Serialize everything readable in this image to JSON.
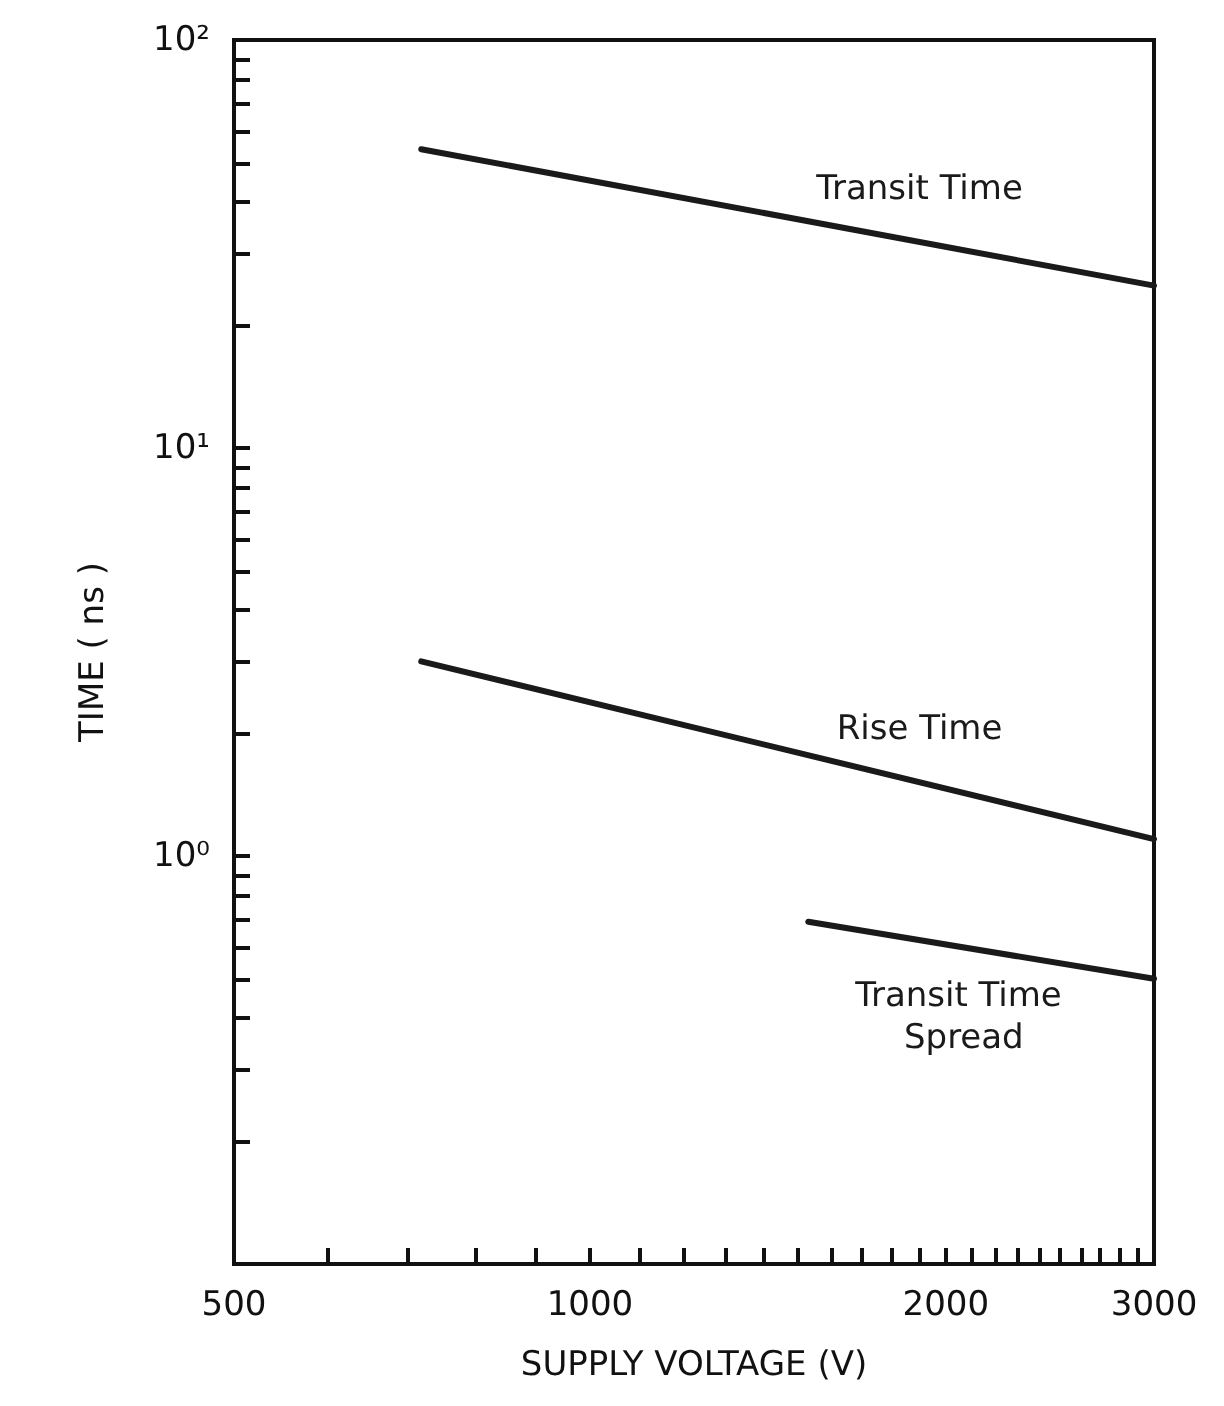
{
  "chart_data": {
    "type": "line",
    "xlabel": "SUPPLY VOLTAGE (V)",
    "ylabel": "TIME ( ns )",
    "log": "xy",
    "grid": false,
    "legend": false,
    "marker": "none",
    "line_style": "solid",
    "xlim": [
      500,
      3000
    ],
    "ylim": [
      0.1,
      100
    ],
    "xticks": [
      500,
      {
        "value": 600,
        "label": null
      },
      {
        "value": 700,
        "label": null
      },
      {
        "value": 800,
        "label": null
      },
      {
        "value": 900,
        "label": null
      },
      1000,
      {
        "value": 1100,
        "label": null
      },
      {
        "value": 1200,
        "label": null
      },
      {
        "value": 1300,
        "label": null
      },
      {
        "value": 1400,
        "label": null
      },
      {
        "value": 1500,
        "label": null
      },
      {
        "value": 1600,
        "label": null
      },
      {
        "value": 1700,
        "label": null
      },
      {
        "value": 1800,
        "label": null
      },
      {
        "value": 1900,
        "label": null
      },
      2000,
      {
        "value": 2100,
        "label": null
      },
      {
        "value": 2200,
        "label": null
      },
      {
        "value": 2300,
        "label": null
      },
      {
        "value": 2400,
        "label": null
      },
      {
        "value": 2500,
        "label": null
      },
      {
        "value": 2600,
        "label": null
      },
      {
        "value": 2700,
        "label": null
      },
      {
        "value": 2800,
        "label": null
      },
      {
        "value": 2900,
        "label": null
      },
      3000
    ],
    "yticks": [
      {
        "value": 0.2,
        "label": null
      },
      {
        "value": 0.3,
        "label": null
      },
      {
        "value": 0.4,
        "label": null
      },
      {
        "value": 0.5,
        "label": null
      },
      {
        "value": 0.6,
        "label": null
      },
      {
        "value": 0.7,
        "label": null
      },
      {
        "value": 0.8,
        "label": null
      },
      {
        "value": 0.9,
        "label": null
      },
      {
        "value": 1,
        "label": "10⁰"
      },
      {
        "value": 2,
        "label": null
      },
      {
        "value": 3,
        "label": null
      },
      {
        "value": 4,
        "label": null
      },
      {
        "value": 5,
        "label": null
      },
      {
        "value": 6,
        "label": null
      },
      {
        "value": 7,
        "label": null
      },
      {
        "value": 8,
        "label": null
      },
      {
        "value": 9,
        "label": null
      },
      {
        "value": 10,
        "label": "10¹"
      },
      {
        "value": 20,
        "label": null
      },
      {
        "value": 30,
        "label": null
      },
      {
        "value": 40,
        "label": null
      },
      {
        "value": 50,
        "label": null
      },
      {
        "value": 60,
        "label": null
      },
      {
        "value": 70,
        "label": null
      },
      {
        "value": 80,
        "label": null
      },
      {
        "value": 90,
        "label": null
      },
      {
        "value": 100,
        "label": "10²"
      }
    ],
    "series": [
      {
        "name": "Transit Time",
        "color": "#1a1a1a",
        "x": [
          720,
          3000
        ],
        "values": [
          54,
          25
        ]
      },
      {
        "name": "Rise Time",
        "color": "#1a1a1a",
        "x": [
          720,
          3000
        ],
        "values": [
          3.0,
          1.1
        ]
      },
      {
        "name": "Transit Time Spread",
        "color": "#1a1a1a",
        "x": [
          1530,
          3000
        ],
        "values": [
          0.69,
          0.5
        ]
      }
    ]
  }
}
